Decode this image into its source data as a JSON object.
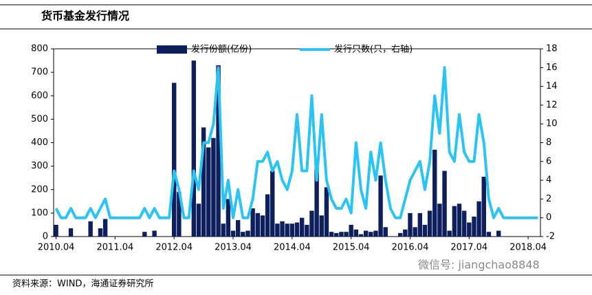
{
  "title": "货币基金发行情况",
  "source": "资料来源：WIND，海通证券研究所",
  "watermark": "微信号: jiangchao8848",
  "chart_data": {
    "type": "bar-line",
    "categories": [
      "2010.04",
      null,
      null,
      null,
      null,
      null,
      null,
      null,
      null,
      null,
      null,
      null,
      "2011.04",
      null,
      null,
      null,
      null,
      null,
      null,
      null,
      null,
      null,
      null,
      null,
      "2012.04",
      null,
      null,
      null,
      null,
      null,
      null,
      null,
      null,
      null,
      null,
      null,
      "2013.04",
      null,
      null,
      null,
      null,
      null,
      null,
      null,
      null,
      null,
      null,
      null,
      "2014.04",
      null,
      null,
      null,
      null,
      null,
      null,
      null,
      null,
      null,
      null,
      null,
      "2015.04",
      null,
      null,
      null,
      null,
      null,
      null,
      null,
      null,
      null,
      null,
      null,
      "2016.04",
      null,
      null,
      null,
      null,
      null,
      null,
      null,
      null,
      null,
      null,
      null,
      "2017.04",
      null,
      null,
      null,
      null,
      null,
      null,
      null,
      null,
      null,
      null,
      null,
      "2018.04",
      null,
      null
    ],
    "series": [
      {
        "name": "发行份额(亿份)",
        "color": "#0d1f5c",
        "axis": "y",
        "values": [
          50,
          0,
          0,
          35,
          0,
          0,
          0,
          65,
          0,
          35,
          75,
          0,
          0,
          0,
          0,
          0,
          0,
          0,
          20,
          0,
          25,
          0,
          0,
          0,
          655,
          190,
          0,
          0,
          750,
          140,
          465,
          380,
          420,
          730,
          55,
          160,
          25,
          70,
          20,
          25,
          120,
          100,
          90,
          180,
          280,
          55,
          65,
          55,
          55,
          60,
          80,
          50,
          110,
          290,
          90,
          210,
          20,
          15,
          20,
          20,
          50,
          30,
          10,
          25,
          20,
          25,
          260,
          40,
          0,
          0,
          15,
          30,
          100,
          40,
          100,
          50,
          110,
          370,
          140,
          280,
          25,
          130,
          140,
          110,
          60,
          85,
          150,
          255,
          20,
          0,
          25,
          0,
          0,
          0,
          0,
          0,
          0,
          0,
          0
        ]
      },
      {
        "name": "发行只数(只，右轴)",
        "color": "#29c4f4",
        "axis": "y2",
        "values": [
          1,
          0,
          0,
          1,
          0,
          0,
          0,
          1,
          0,
          1,
          2,
          0,
          0,
          0,
          0,
          0,
          0,
          0,
          1,
          0,
          1,
          0,
          0,
          0,
          5,
          3,
          0,
          0,
          5,
          3,
          8,
          8,
          10,
          16,
          1,
          4,
          0,
          3,
          0,
          0,
          2,
          6,
          6,
          7,
          5,
          6,
          4,
          3,
          5,
          11,
          5,
          5,
          13,
          4,
          11,
          4,
          2,
          1,
          1,
          2,
          0.5,
          8,
          3,
          1,
          7,
          4,
          8,
          4,
          1,
          0,
          0,
          2,
          4,
          5,
          6,
          3,
          6,
          13,
          9,
          16,
          7,
          6,
          11,
          7,
          6,
          6,
          11,
          8,
          2,
          0,
          1,
          0,
          0,
          0,
          0,
          0,
          0,
          0,
          0
        ]
      }
    ],
    "ylim": [
      0,
      800
    ],
    "yticks": [
      0,
      100,
      200,
      300,
      400,
      500,
      600,
      700,
      800
    ],
    "y2lim": [
      -2,
      18
    ],
    "y2ticks": [
      -2,
      0,
      2,
      4,
      6,
      8,
      10,
      12,
      14,
      16,
      18
    ]
  }
}
